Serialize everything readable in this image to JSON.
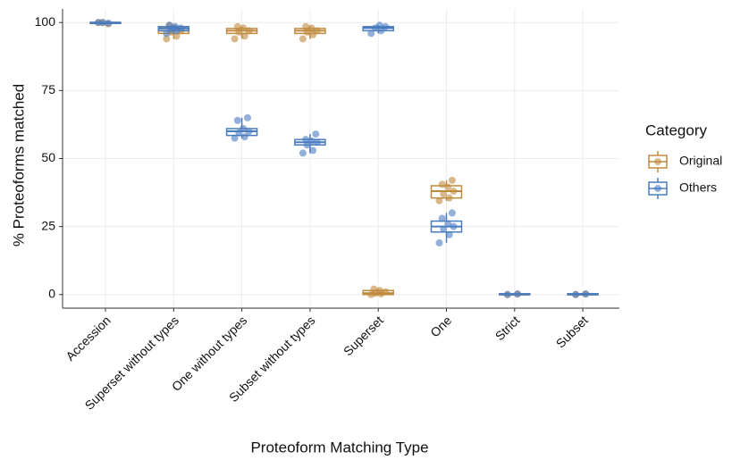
{
  "chart_data": {
    "type": "box",
    "x_label": "Proteoform Matching Type",
    "y_label": "% Proteoforms matched",
    "legend_title": "Category",
    "legend_position": "right",
    "grid": true,
    "categories": [
      "Accession",
      "Superset without types",
      "One without types",
      "Subset without types",
      "Superset",
      "One",
      "Strict",
      "Subset"
    ],
    "ylim": [
      -5,
      105
    ],
    "yticks": [
      0,
      25,
      50,
      75,
      100
    ],
    "series": [
      {
        "name": "Original",
        "color": "#c08a3e",
        "boxes": [
          {
            "low": 99.5,
            "q1": 100,
            "median": 100,
            "q3": 100,
            "high": 100
          },
          {
            "low": 94,
            "q1": 96,
            "median": 97,
            "q3": 98,
            "high": 99
          },
          {
            "low": 94,
            "q1": 96,
            "median": 97,
            "q3": 97.8,
            "high": 98.5
          },
          {
            "low": 94,
            "q1": 96,
            "median": 97,
            "q3": 97.8,
            "high": 98.5
          },
          {
            "low": 0,
            "q1": 0,
            "median": 0.5,
            "q3": 1.5,
            "high": 2
          },
          {
            "low": 34.5,
            "q1": 35.5,
            "median": 38,
            "q3": 40,
            "high": 42
          },
          {
            "low": 0,
            "q1": 0,
            "median": 0,
            "q3": 0.3,
            "high": 0.3
          },
          {
            "low": 0,
            "q1": 0,
            "median": 0,
            "q3": 0.3,
            "high": 0.3
          }
        ],
        "points": [
          [
            100,
            99.5,
            100
          ],
          [
            94,
            95,
            96.5,
            97,
            98,
            99
          ],
          [
            94,
            95,
            96.5,
            97,
            98,
            98.5
          ],
          [
            94,
            95.5,
            96.5,
            97,
            98,
            98.5
          ],
          [
            0,
            0.3,
            0.5,
            1,
            1.5,
            2
          ],
          [
            34.5,
            35.5,
            37,
            38,
            39.5,
            40.5,
            42
          ],
          [
            0,
            0.2
          ],
          [
            0,
            0.2
          ]
        ]
      },
      {
        "name": "Others",
        "color": "#4a7cc0",
        "boxes": [
          {
            "low": 99.5,
            "q1": 100,
            "median": 100,
            "q3": 100,
            "high": 100
          },
          {
            "low": 96,
            "q1": 97,
            "median": 97.8,
            "q3": 98.5,
            "high": 99
          },
          {
            "low": 57.5,
            "q1": 58.5,
            "median": 60,
            "q3": 61,
            "high": 65
          },
          {
            "low": 52,
            "q1": 55,
            "median": 56,
            "q3": 57,
            "high": 59
          },
          {
            "low": 96,
            "q1": 97,
            "median": 98,
            "q3": 98.5,
            "high": 99
          },
          {
            "low": 19,
            "q1": 23,
            "median": 25,
            "q3": 27,
            "high": 30
          },
          {
            "low": 0,
            "q1": 0,
            "median": 0,
            "q3": 0.3,
            "high": 0.3
          },
          {
            "low": 0,
            "q1": 0,
            "median": 0,
            "q3": 0.3,
            "high": 0.3
          }
        ],
        "points": [
          [
            100,
            99.8,
            100
          ],
          [
            96,
            97,
            97.5,
            98,
            98.5,
            99
          ],
          [
            57.5,
            58,
            59.5,
            60,
            61,
            64,
            65
          ],
          [
            52,
            53,
            55,
            56,
            56.5,
            57,
            59
          ],
          [
            96,
            97,
            98,
            98.5,
            99
          ],
          [
            19,
            22,
            24,
            25,
            26,
            28,
            30
          ],
          [
            0,
            0.2
          ],
          [
            0,
            0.2
          ]
        ]
      }
    ]
  }
}
